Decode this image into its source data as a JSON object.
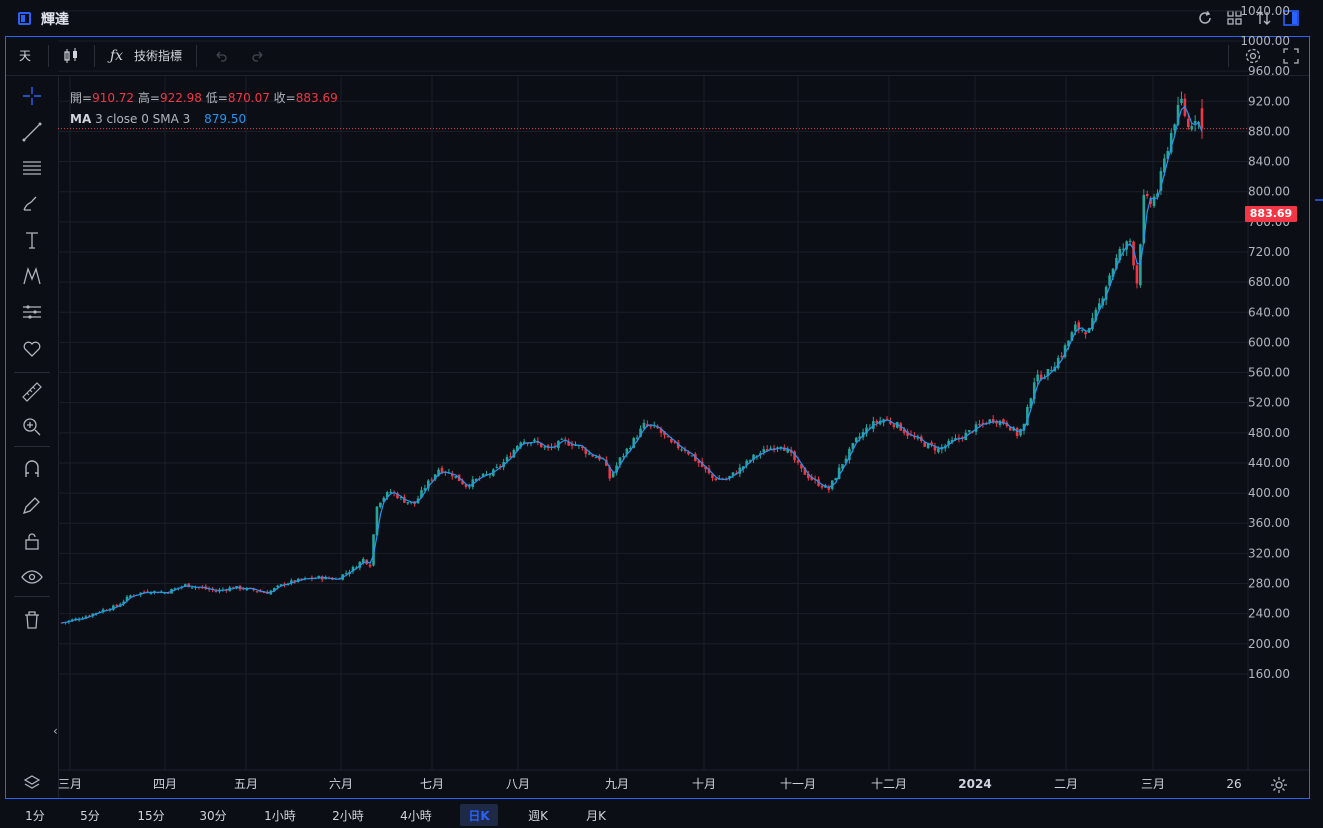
{
  "window": {
    "title": "輝達"
  },
  "toolbar": {
    "interval": "天",
    "indicators_label": "技術指標"
  },
  "legend": {
    "open_label": "開=",
    "open": "910.72",
    "high_label": "高=",
    "high": "922.98",
    "low_label": "低=",
    "low": "870.07",
    "close_label": "收=",
    "close": "883.69",
    "ma_name": "MA",
    "ma_params": "3 close 0 SMA 3",
    "ma_value": "879.50"
  },
  "colors": {
    "up": "#26a69a",
    "down": "#f23645",
    "ma": "#2196f3",
    "accent": "#2962ff"
  },
  "price_axis": {
    "labels": [
      "1040.00",
      "1000.00",
      "960.00",
      "920.00",
      "880.00",
      "840.00",
      "800.00",
      "760.00",
      "720.00",
      "680.00",
      "640.00",
      "600.00",
      "560.00",
      "520.00",
      "480.00",
      "440.00",
      "400.00",
      "360.00",
      "320.00",
      "280.00",
      "240.00",
      "200.00",
      "160.00"
    ],
    "last_price": "883.69"
  },
  "time_axis": {
    "labels": [
      "三月",
      "四月",
      "五月",
      "六月",
      "七月",
      "八月",
      "九月",
      "十月",
      "十一月",
      "十二月",
      "2024",
      "二月",
      "三月",
      "26"
    ],
    "first_label_partial": "三月"
  },
  "intervals": {
    "items": [
      "1分",
      "5分",
      "15分",
      "30分",
      "1小時",
      "2小時",
      "4小時",
      "日K",
      "週K",
      "月K"
    ],
    "active": "日K"
  },
  "chart_data": {
    "type": "candlestick",
    "title": "輝達",
    "ylim": [
      160,
      1060
    ],
    "y_ticks": [
      160,
      200,
      240,
      280,
      320,
      360,
      400,
      440,
      480,
      520,
      560,
      600,
      640,
      680,
      720,
      760,
      800,
      840,
      880,
      920,
      960,
      1000,
      1040
    ],
    "x_labels": [
      "三月",
      "四月",
      "五月",
      "六月",
      "七月",
      "八月",
      "九月",
      "十月",
      "十一月",
      "十二月",
      "2024",
      "二月",
      "三月",
      "26"
    ],
    "ma_period": 3,
    "last": {
      "open": 910.72,
      "high": 922.98,
      "low": 870.07,
      "close": 883.69,
      "ma": 879.5
    },
    "close_path": [
      [
        0,
        228
      ],
      [
        6,
        235
      ],
      [
        12,
        245
      ],
      [
        16,
        250
      ],
      [
        20,
        264
      ],
      [
        25,
        270
      ],
      [
        30,
        268
      ],
      [
        36,
        278
      ],
      [
        40,
        275
      ],
      [
        45,
        270
      ],
      [
        50,
        275
      ],
      [
        55,
        272
      ],
      [
        60,
        268
      ],
      [
        65,
        280
      ],
      [
        70,
        285
      ],
      [
        75,
        288
      ],
      [
        80,
        286
      ],
      [
        85,
        300
      ],
      [
        88,
        312
      ],
      [
        90,
        305
      ],
      [
        92,
        385
      ],
      [
        94,
        395
      ],
      [
        96,
        402
      ],
      [
        100,
        390
      ],
      [
        103,
        386
      ],
      [
        106,
        408
      ],
      [
        110,
        432
      ],
      [
        114,
        425
      ],
      [
        118,
        410
      ],
      [
        122,
        420
      ],
      [
        126,
        428
      ],
      [
        130,
        445
      ],
      [
        134,
        470
      ],
      [
        138,
        468
      ],
      [
        142,
        458
      ],
      [
        146,
        468
      ],
      [
        150,
        465
      ],
      [
        154,
        452
      ],
      [
        158,
        445
      ],
      [
        160,
        420
      ],
      [
        163,
        445
      ],
      [
        167,
        470
      ],
      [
        170,
        490
      ],
      [
        174,
        485
      ],
      [
        178,
        465
      ],
      [
        182,
        458
      ],
      [
        186,
        440
      ],
      [
        190,
        420
      ],
      [
        194,
        418
      ],
      [
        198,
        432
      ],
      [
        202,
        448
      ],
      [
        206,
        458
      ],
      [
        210,
        465
      ],
      [
        213,
        450
      ],
      [
        216,
        430
      ],
      [
        220,
        415
      ],
      [
        224,
        405
      ],
      [
        228,
        440
      ],
      [
        232,
        470
      ],
      [
        236,
        490
      ],
      [
        240,
        498
      ],
      [
        244,
        490
      ],
      [
        248,
        475
      ],
      [
        252,
        465
      ],
      [
        256,
        458
      ],
      [
        260,
        468
      ],
      [
        264,
        478
      ],
      [
        268,
        490
      ],
      [
        272,
        498
      ],
      [
        276,
        492
      ],
      [
        279,
        478
      ],
      [
        281,
        490
      ],
      [
        284,
        550
      ],
      [
        288,
        560
      ],
      [
        292,
        585
      ],
      [
        296,
        620
      ],
      [
        300,
        615
      ],
      [
        303,
        650
      ],
      [
        306,
        690
      ],
      [
        309,
        720
      ],
      [
        312,
        735
      ],
      [
        314,
        680
      ],
      [
        316,
        790
      ],
      [
        318,
        785
      ],
      [
        320,
        800
      ],
      [
        323,
        860
      ],
      [
        325,
        895
      ],
      [
        327,
        920
      ],
      [
        329,
        885
      ],
      [
        331,
        900
      ],
      [
        333,
        883.69
      ]
    ],
    "x_span": 333
  }
}
